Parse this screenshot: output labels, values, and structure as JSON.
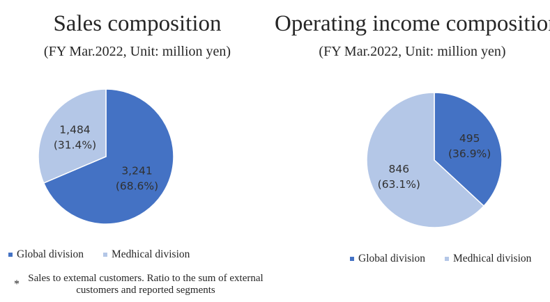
{
  "chart_data": [
    {
      "type": "pie",
      "title": "Sales composition",
      "subtitle": "(FY Mar.2022, Unit: million yen)",
      "start_angle_deg": 0,
      "slices": [
        {
          "name": "Global division",
          "value": 3241,
          "value_label": "3,241",
          "percent_label": "(68.6%)",
          "color": "#4472C4"
        },
        {
          "name": "Medhical division",
          "value": 1484,
          "value_label": "1,484",
          "percent_label": "(31.4%)",
          "color": "#B4C7E7"
        }
      ],
      "legend": [
        "Global division",
        "Medhical division"
      ],
      "legend_position": "bottom"
    },
    {
      "type": "pie",
      "title": "Operating income composition",
      "subtitle": "(FY Mar.2022, Unit: million yen)",
      "start_angle_deg": 0,
      "slices": [
        {
          "name": "Global division",
          "value": 495,
          "value_label": "495",
          "percent_label": "(36.9%)",
          "color": "#4472C4"
        },
        {
          "name": "Medhical division",
          "value": 846,
          "value_label": "846",
          "percent_label": "(63.1%)",
          "color": "#B4C7E7"
        }
      ],
      "legend": [
        "Global division",
        "Medhical division"
      ],
      "legend_position": "bottom"
    }
  ],
  "footnote": {
    "mark": "*",
    "text": "Sales to extemal customers. Ratio to the sum of external customers and reported segments"
  }
}
